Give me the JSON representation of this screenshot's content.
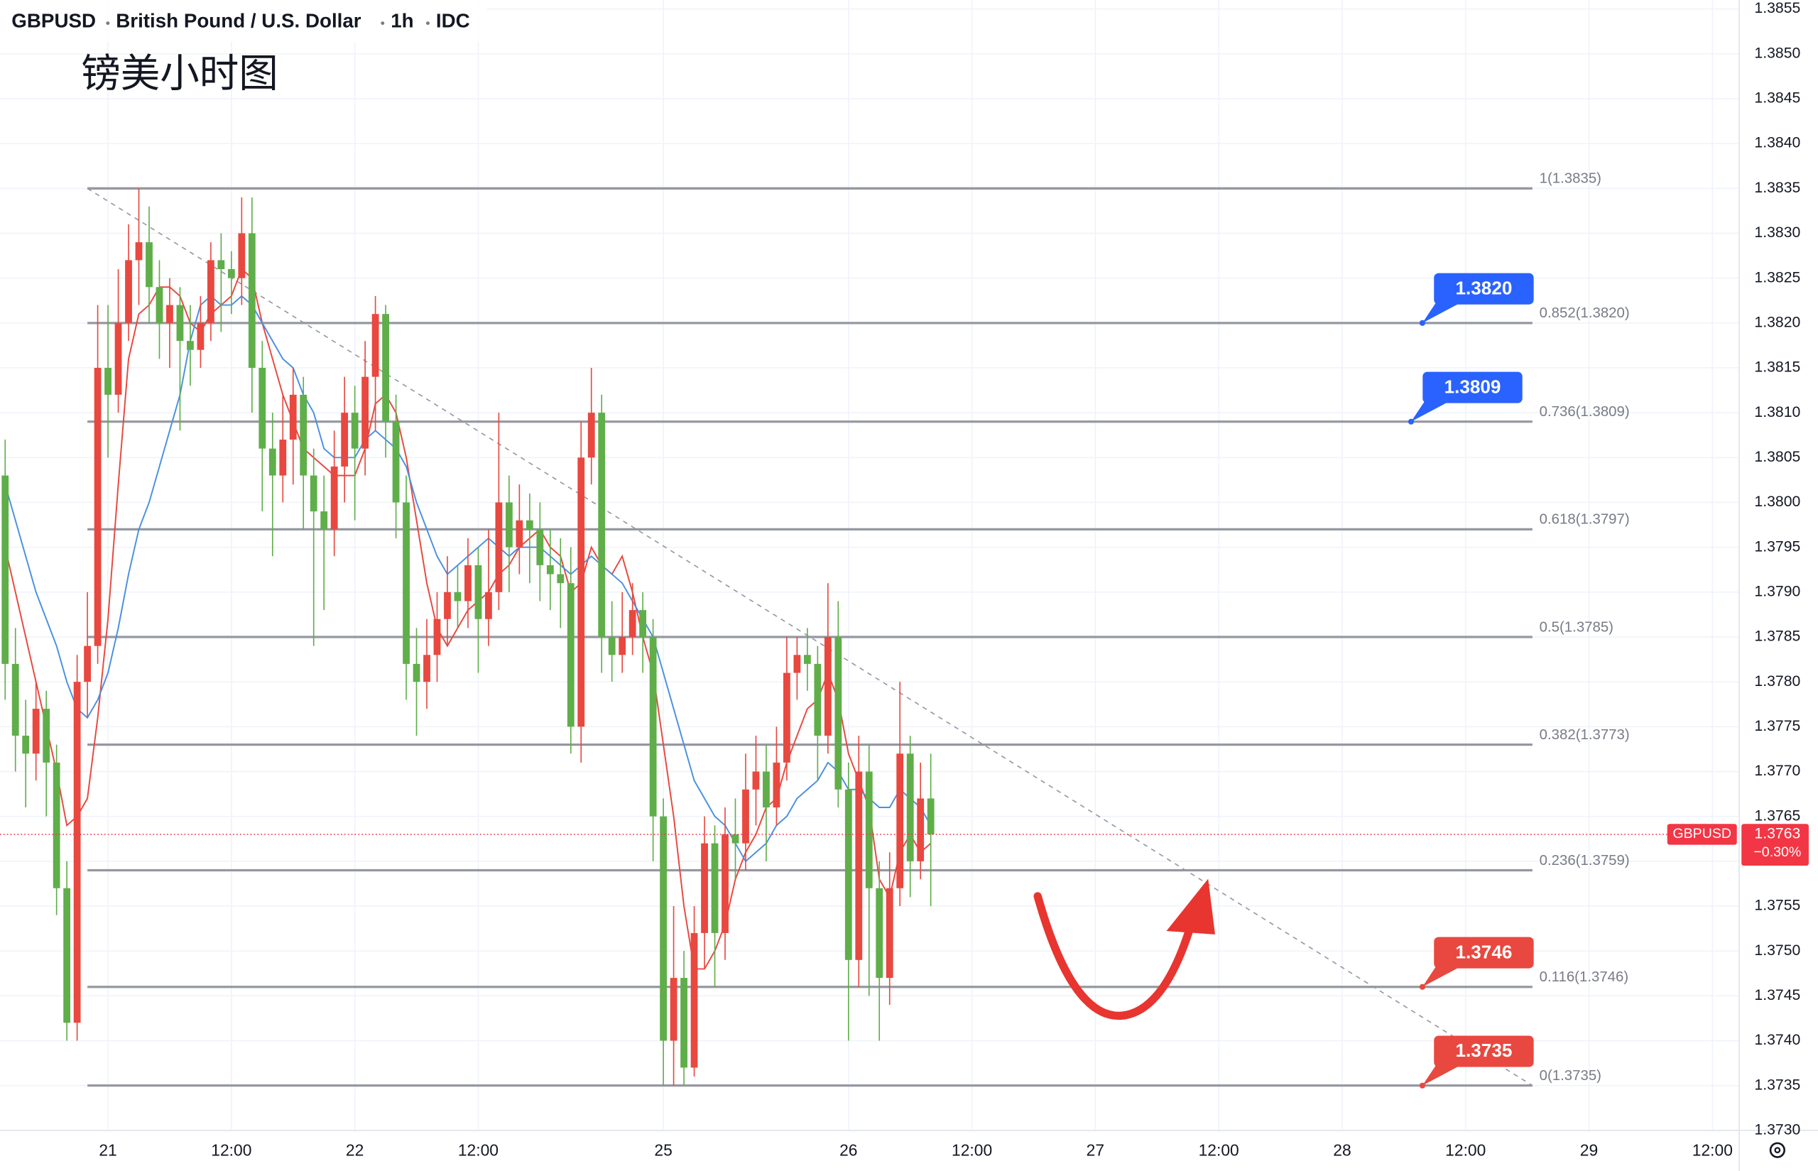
{
  "chart_data": {
    "type": "candlestick",
    "header": {
      "symbol": "GBPUSD",
      "name": "British Pound / U.S. Dollar",
      "interval": "1h",
      "source": "IDC"
    },
    "annotation": "镑美小时图",
    "up_color": "#e8483f",
    "down_color": "#5fae4a",
    "xlim": [
      -10.5,
      158.6
    ],
    "ylim": [
      1.373,
      1.3856
    ],
    "xticks": [
      {
        "value": 0,
        "label": "21"
      },
      {
        "value": 12,
        "label": "12:00"
      },
      {
        "value": 24,
        "label": "22"
      },
      {
        "value": 36,
        "label": "12:00"
      },
      {
        "value": 54,
        "label": "25"
      },
      {
        "value": 72,
        "label": "26"
      },
      {
        "value": 84,
        "label": "12:00"
      },
      {
        "value": 96,
        "label": "27"
      },
      {
        "value": 108,
        "label": "12:00"
      },
      {
        "value": 120,
        "label": "28"
      },
      {
        "value": 132,
        "label": "12:00"
      },
      {
        "value": 144,
        "label": "29"
      },
      {
        "value": 156,
        "label": "12:00"
      }
    ],
    "yticks": [
      {
        "value": 1.3855,
        "label": "1.3855"
      },
      {
        "value": 1.385,
        "label": "1.3850"
      },
      {
        "value": 1.3845,
        "label": "1.3845"
      },
      {
        "value": 1.384,
        "label": "1.3840"
      },
      {
        "value": 1.3835,
        "label": "1.3835"
      },
      {
        "value": 1.383,
        "label": "1.3830"
      },
      {
        "value": 1.3825,
        "label": "1.3825"
      },
      {
        "value": 1.382,
        "label": "1.3820"
      },
      {
        "value": 1.3815,
        "label": "1.3815"
      },
      {
        "value": 1.381,
        "label": "1.3810"
      },
      {
        "value": 1.3805,
        "label": "1.3805"
      },
      {
        "value": 1.38,
        "label": "1.3800"
      },
      {
        "value": 1.3795,
        "label": "1.3795"
      },
      {
        "value": 1.379,
        "label": "1.3790"
      },
      {
        "value": 1.3785,
        "label": "1.3785"
      },
      {
        "value": 1.378,
        "label": "1.3780"
      },
      {
        "value": 1.3775,
        "label": "1.3775"
      },
      {
        "value": 1.377,
        "label": "1.3770"
      },
      {
        "value": 1.3765,
        "label": "1.3765"
      },
      {
        "value": 1.376,
        "label": "1.3760"
      },
      {
        "value": 1.3755,
        "label": "1.3755"
      },
      {
        "value": 1.375,
        "label": "1.3750"
      },
      {
        "value": 1.3745,
        "label": "1.3745"
      },
      {
        "value": 1.374,
        "label": "1.3740"
      },
      {
        "value": 1.3735,
        "label": "1.3735"
      },
      {
        "value": 1.373,
        "label": "1.3730"
      }
    ],
    "grid": true,
    "x": [
      -10,
      -9,
      -8,
      -7,
      -6,
      -5,
      -4,
      -3,
      -2,
      -1,
      0,
      1,
      2,
      3,
      4,
      5,
      6,
      7,
      8,
      9,
      10,
      11,
      12,
      13,
      14,
      15,
      16,
      17,
      18,
      19,
      20,
      21,
      22,
      23,
      24,
      25,
      26,
      27,
      28,
      29,
      30,
      31,
      32,
      33,
      34,
      35,
      36,
      37,
      38,
      39,
      40,
      41,
      42,
      43,
      44,
      45,
      46,
      47,
      48,
      49,
      50,
      51,
      52,
      53,
      54,
      55,
      56,
      57,
      58,
      59,
      60,
      61,
      62,
      63,
      64,
      65,
      66,
      67,
      68,
      69,
      70,
      71,
      72,
      73,
      74,
      75,
      76,
      77,
      78,
      79,
      80
    ],
    "open": [
      1.3803,
      1.3782,
      1.3774,
      1.3772,
      1.3777,
      1.3771,
      1.3757,
      1.3742,
      1.378,
      1.3784,
      1.3815,
      1.3812,
      1.382,
      1.3827,
      1.3829,
      1.3824,
      1.382,
      1.3822,
      1.3818,
      1.3817,
      1.382,
      1.3827,
      1.3826,
      1.3825,
      1.383,
      1.3815,
      1.3806,
      1.3803,
      1.3807,
      1.3812,
      1.3803,
      1.3799,
      1.3797,
      1.3804,
      1.381,
      1.3806,
      1.3814,
      1.3821,
      1.3809,
      1.38,
      1.3782,
      1.378,
      1.3783,
      1.3787,
      1.379,
      1.3789,
      1.3793,
      1.3787,
      1.379,
      1.38,
      1.3795,
      1.3798,
      1.3797,
      1.3793,
      1.3792,
      1.3791,
      1.3775,
      1.3805,
      1.381,
      1.3785,
      1.3783,
      1.3785,
      1.3788,
      1.3785,
      1.3765,
      1.374,
      1.3747,
      1.3737,
      1.3752,
      1.3762,
      1.3752,
      1.3763,
      1.3762,
      1.3768,
      1.377,
      1.3766,
      1.3771,
      1.3781,
      1.3783,
      1.3782,
      1.3774,
      1.3785,
      1.3768,
      1.3749,
      1.377,
      1.3757,
      1.3747,
      1.3757,
      1.3772,
      1.376,
      1.3767
    ],
    "high": [
      1.3807,
      1.3786,
      1.3778,
      1.378,
      1.3779,
      1.3773,
      1.376,
      1.3783,
      1.379,
      1.3822,
      1.3822,
      1.3826,
      1.3831,
      1.3835,
      1.3833,
      1.3827,
      1.3825,
      1.3824,
      1.3822,
      1.3823,
      1.3829,
      1.383,
      1.3828,
      1.3834,
      1.3834,
      1.3818,
      1.381,
      1.3812,
      1.3815,
      1.3814,
      1.3806,
      1.3803,
      1.3808,
      1.3814,
      1.3813,
      1.3818,
      1.3823,
      1.3822,
      1.3812,
      1.3803,
      1.3786,
      1.3787,
      1.379,
      1.3794,
      1.3793,
      1.3796,
      1.3795,
      1.3797,
      1.381,
      1.3803,
      1.3802,
      1.3801,
      1.38,
      1.3797,
      1.3796,
      1.3795,
      1.3809,
      1.3815,
      1.3812,
      1.3789,
      1.379,
      1.3791,
      1.379,
      1.3787,
      1.3767,
      1.3755,
      1.375,
      1.3755,
      1.3765,
      1.3764,
      1.3766,
      1.3767,
      1.3772,
      1.3774,
      1.3773,
      1.3775,
      1.3785,
      1.3785,
      1.3786,
      1.3784,
      1.3791,
      1.3789,
      1.3771,
      1.3774,
      1.3773,
      1.376,
      1.3761,
      1.378,
      1.3774,
      1.3771,
      1.3772
    ],
    "low": [
      1.3778,
      1.377,
      1.3766,
      1.3769,
      1.3765,
      1.3754,
      1.374,
      1.374,
      1.3776,
      1.3782,
      1.3805,
      1.381,
      1.3818,
      1.3822,
      1.382,
      1.3816,
      1.3815,
      1.3808,
      1.3813,
      1.3815,
      1.3818,
      1.3819,
      1.3821,
      1.3822,
      1.381,
      1.3799,
      1.3794,
      1.38,
      1.3802,
      1.3797,
      1.3784,
      1.3788,
      1.3794,
      1.38,
      1.3798,
      1.3803,
      1.3808,
      1.3805,
      1.3796,
      1.3778,
      1.3774,
      1.3777,
      1.378,
      1.3784,
      1.3786,
      1.3786,
      1.3781,
      1.3784,
      1.3788,
      1.379,
      1.3792,
      1.3791,
      1.3789,
      1.3788,
      1.3786,
      1.3772,
      1.3771,
      1.3802,
      1.3781,
      1.378,
      1.3781,
      1.3783,
      1.3781,
      1.376,
      1.3735,
      1.3735,
      1.3735,
      1.3736,
      1.3748,
      1.3746,
      1.3749,
      1.3758,
      1.3759,
      1.3764,
      1.376,
      1.3764,
      1.3769,
      1.3778,
      1.3779,
      1.3769,
      1.3772,
      1.3766,
      1.374,
      1.3746,
      1.3745,
      1.374,
      1.3744,
      1.3755,
      1.3756,
      1.3758,
      1.3755
    ],
    "close": [
      1.3782,
      1.3774,
      1.3772,
      1.3777,
      1.3771,
      1.3757,
      1.3742,
      1.378,
      1.3784,
      1.3815,
      1.3812,
      1.382,
      1.3827,
      1.3829,
      1.3824,
      1.382,
      1.3822,
      1.3818,
      1.3817,
      1.382,
      1.3827,
      1.3826,
      1.3825,
      1.383,
      1.3815,
      1.3806,
      1.3803,
      1.3807,
      1.3812,
      1.3803,
      1.3799,
      1.3797,
      1.3804,
      1.381,
      1.3806,
      1.3814,
      1.3821,
      1.3809,
      1.38,
      1.3782,
      1.378,
      1.3783,
      1.3787,
      1.379,
      1.3789,
      1.3793,
      1.3787,
      1.379,
      1.38,
      1.3795,
      1.3798,
      1.3797,
      1.3793,
      1.3792,
      1.3791,
      1.3775,
      1.3805,
      1.381,
      1.3785,
      1.3783,
      1.3785,
      1.3788,
      1.3785,
      1.3765,
      1.374,
      1.3747,
      1.3737,
      1.3752,
      1.3762,
      1.3752,
      1.3763,
      1.3762,
      1.3768,
      1.377,
      1.3766,
      1.3771,
      1.3781,
      1.3783,
      1.3782,
      1.3774,
      1.3785,
      1.3768,
      1.3749,
      1.377,
      1.3757,
      1.3747,
      1.3757,
      1.3772,
      1.376,
      1.3767,
      1.3763
    ],
    "moving_averages": [
      {
        "color": "#e8483f",
        "values": [
          1.3795,
          1.379,
          1.3785,
          1.378,
          1.3775,
          1.377,
          1.3764,
          1.3765,
          1.3767,
          1.3776,
          1.3787,
          1.3802,
          1.3816,
          1.3821,
          1.3822,
          1.3824,
          1.3824,
          1.3823,
          1.382,
          1.3819,
          1.3821,
          1.3822,
          1.3823,
          1.3826,
          1.3825,
          1.382,
          1.3816,
          1.3812,
          1.3809,
          1.3806,
          1.3805,
          1.3804,
          1.3803,
          1.3803,
          1.3803,
          1.3806,
          1.3811,
          1.3812,
          1.381,
          1.3805,
          1.3798,
          1.3791,
          1.3786,
          1.3784,
          1.3786,
          1.3788,
          1.3789,
          1.379,
          1.3792,
          1.3793,
          1.3795,
          1.3796,
          1.3797,
          1.3795,
          1.3794,
          1.379,
          1.3791,
          1.3795,
          1.3793,
          1.3792,
          1.3794,
          1.379,
          1.3785,
          1.3781,
          1.3773,
          1.3765,
          1.3755,
          1.3748,
          1.3748,
          1.375,
          1.3753,
          1.3758,
          1.3761,
          1.3763,
          1.3766,
          1.3767,
          1.3771,
          1.3774,
          1.3777,
          1.3778,
          1.3781,
          1.3778,
          1.3772,
          1.3769,
          1.3766,
          1.3758,
          1.3756,
          1.3761,
          1.3763,
          1.3761,
          1.3762
        ]
      },
      {
        "color": "#4a90e2",
        "values": [
          1.3802,
          1.3798,
          1.3794,
          1.379,
          1.3787,
          1.3784,
          1.378,
          1.3777,
          1.3776,
          1.3778,
          1.3781,
          1.3786,
          1.3792,
          1.3797,
          1.38,
          1.3804,
          1.3808,
          1.3812,
          1.3818,
          1.3822,
          1.3823,
          1.3822,
          1.3822,
          1.3823,
          1.3822,
          1.382,
          1.3818,
          1.3816,
          1.3815,
          1.3812,
          1.381,
          1.3806,
          1.3805,
          1.3805,
          1.3805,
          1.3807,
          1.3808,
          1.3807,
          1.3806,
          1.3804,
          1.38,
          1.3797,
          1.3794,
          1.3792,
          1.3793,
          1.3794,
          1.3795,
          1.3796,
          1.3795,
          1.3794,
          1.3795,
          1.3795,
          1.3795,
          1.3794,
          1.3793,
          1.3792,
          1.3793,
          1.3794,
          1.3793,
          1.3792,
          1.3791,
          1.3789,
          1.3787,
          1.3785,
          1.3781,
          1.3777,
          1.3773,
          1.3769,
          1.3767,
          1.3765,
          1.3764,
          1.3762,
          1.376,
          1.3761,
          1.3762,
          1.3764,
          1.3765,
          1.3767,
          1.3768,
          1.3769,
          1.3771,
          1.377,
          1.3768,
          1.3768,
          1.3767,
          1.3766,
          1.3766,
          1.3768,
          1.3767,
          1.3766,
          1.3764
        ]
      }
    ],
    "fib_x": [
      -2,
      138.5
    ],
    "fib_color": "#9598a1",
    "fib_levels": [
      {
        "price": 1.3835,
        "label": "1(1.3835)"
      },
      {
        "price": 1.382,
        "label": "0.852(1.3820)"
      },
      {
        "price": 1.3809,
        "label": "0.736(1.3809)"
      },
      {
        "price": 1.3797,
        "label": "0.618(1.3797)"
      },
      {
        "price": 1.3785,
        "label": "0.5(1.3785)"
      },
      {
        "price": 1.3773,
        "label": "0.382(1.3773)"
      },
      {
        "price": 1.3759,
        "label": "0.236(1.3759)"
      },
      {
        "price": 1.3746,
        "label": "0.116(1.3746)"
      },
      {
        "price": 1.3735,
        "label": "0(1.3735)"
      }
    ],
    "trendline": {
      "x": [
        -2,
        138.5
      ],
      "y": [
        1.3835,
        1.3735
      ]
    },
    "callouts": [
      {
        "x": 127.8,
        "value": 1.382,
        "label": "1.3820",
        "color": "#2962ff"
      },
      {
        "x": 126.7,
        "value": 1.3809,
        "label": "1.3809",
        "color": "#2962ff"
      },
      {
        "x": 127.8,
        "value": 1.3746,
        "label": "1.3746",
        "color": "#e8483f"
      },
      {
        "x": 127.8,
        "value": 1.3735,
        "label": "1.3735",
        "color": "#e8483f"
      }
    ],
    "current": {
      "symbol": "GBPUSD",
      "price": {
        "value": 1.3763,
        "label": "1.3763"
      },
      "change": "−0.30%",
      "color": "#f23645"
    }
  }
}
